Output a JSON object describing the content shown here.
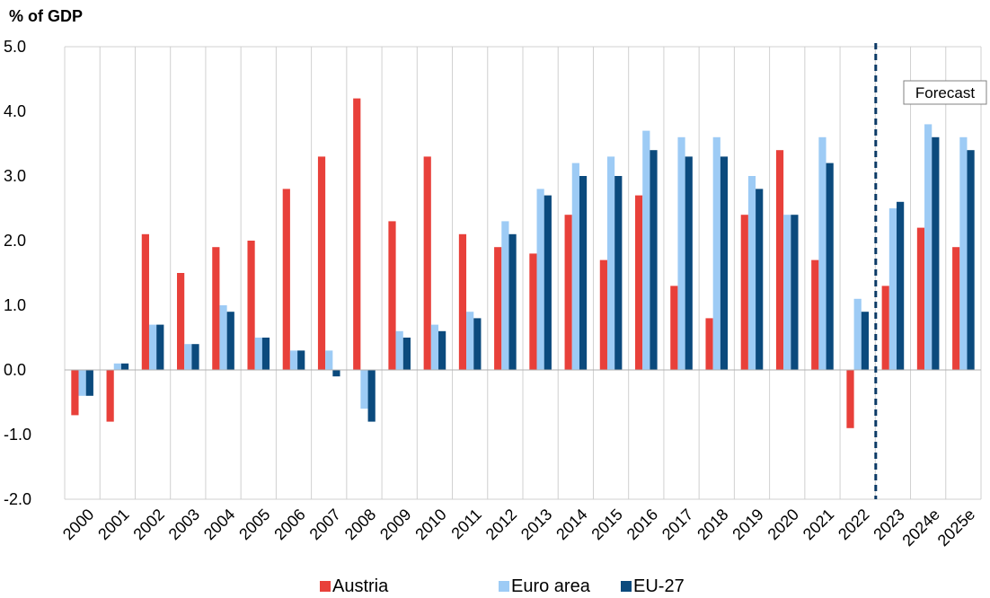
{
  "chart_data": {
    "type": "bar",
    "ylabel": "% of GDP",
    "ylim": [
      -2.0,
      5.0
    ],
    "yticks": [
      "5.0",
      "4.0",
      "3.0",
      "2.0",
      "1.0",
      "0.0",
      "-1.0",
      "-2.0"
    ],
    "categories": [
      "2000",
      "2001",
      "2002",
      "2003",
      "2004",
      "2005",
      "2006",
      "2007",
      "2008",
      "2009",
      "2010",
      "2011",
      "2012",
      "2013",
      "2014",
      "2015",
      "2016",
      "2017",
      "2018",
      "2019",
      "2020",
      "2021",
      "2022",
      "2023",
      "2024e",
      "2025e"
    ],
    "series": [
      {
        "name": "Austria",
        "color": "#e8403a",
        "values": [
          -0.7,
          -0.8,
          2.1,
          1.5,
          1.9,
          2.0,
          2.8,
          3.3,
          4.2,
          2.3,
          3.3,
          2.1,
          1.9,
          1.8,
          2.4,
          1.7,
          2.7,
          1.3,
          0.8,
          2.4,
          3.4,
          1.7,
          -0.9,
          1.3,
          2.2,
          1.9
        ]
      },
      {
        "name": "Euro area",
        "color": "#9dcbf5",
        "values": [
          -0.4,
          0.1,
          0.7,
          0.4,
          1.0,
          0.5,
          0.3,
          0.3,
          -0.6,
          0.6,
          0.7,
          0.9,
          2.3,
          2.8,
          3.2,
          3.3,
          3.7,
          3.6,
          3.6,
          3.0,
          2.4,
          3.6,
          1.1,
          2.5,
          3.8,
          3.6
        ]
      },
      {
        "name": "EU-27",
        "color": "#0b4a7d",
        "values": [
          -0.4,
          0.1,
          0.7,
          0.4,
          0.9,
          0.5,
          0.3,
          -0.1,
          -0.8,
          0.5,
          0.6,
          0.8,
          2.1,
          2.7,
          3.0,
          3.0,
          3.4,
          3.3,
          3.3,
          2.8,
          2.4,
          3.2,
          0.9,
          2.6,
          3.6,
          3.4
        ]
      }
    ],
    "forecast_label": "Forecast",
    "forecast_start": "2023",
    "grid": "vertical",
    "legend": "bottom"
  }
}
